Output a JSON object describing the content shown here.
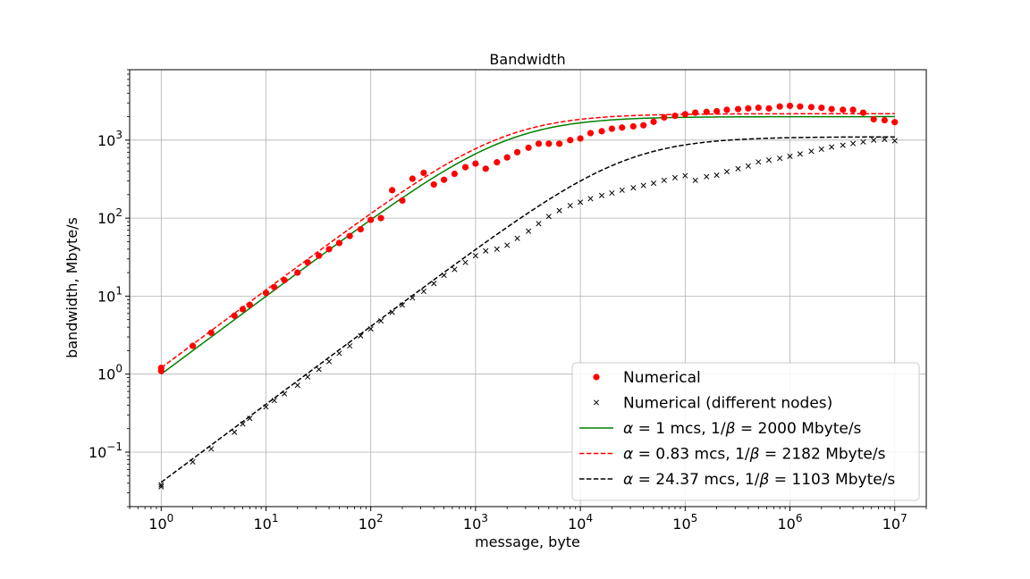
{
  "chart_data": {
    "type": "scatter",
    "title": "Bandwidth",
    "xlabel": "message, byte",
    "ylabel": "bandwidth, Mbyte/s",
    "xscale": "log",
    "yscale": "log",
    "xlim": [
      0.5,
      20000000
    ],
    "ylim": [
      0.02,
      8000
    ],
    "grid": true,
    "legend_position": "lower-right",
    "x_ticks": [
      {
        "base": "10",
        "exp": "0",
        "value": 1
      },
      {
        "base": "10",
        "exp": "1",
        "value": 10
      },
      {
        "base": "10",
        "exp": "2",
        "value": 100
      },
      {
        "base": "10",
        "exp": "3",
        "value": 1000
      },
      {
        "base": "10",
        "exp": "4",
        "value": 10000
      },
      {
        "base": "10",
        "exp": "5",
        "value": 100000
      },
      {
        "base": "10",
        "exp": "6",
        "value": 1000000
      },
      {
        "base": "10",
        "exp": "7",
        "value": 10000000
      }
    ],
    "y_ticks": [
      {
        "base": "10",
        "exp": "−1",
        "value": 0.1
      },
      {
        "base": "10",
        "exp": "0",
        "value": 1
      },
      {
        "base": "10",
        "exp": "1",
        "value": 10
      },
      {
        "base": "10",
        "exp": "2",
        "value": 100
      },
      {
        "base": "10",
        "exp": "3",
        "value": 1000
      }
    ],
    "series": [
      {
        "name": "Numerical",
        "kind": "scatter",
        "marker": "circle",
        "color": "#ff0000",
        "x": [
          1,
          1,
          2,
          3,
          5,
          6,
          7,
          10,
          12,
          15,
          20,
          25,
          32,
          40,
          50,
          63,
          80,
          100,
          125,
          160,
          200,
          250,
          320,
          400,
          500,
          630,
          800,
          1000,
          1250,
          1600,
          2000,
          2500,
          3200,
          4000,
          5000,
          6300,
          8000,
          10000,
          12500,
          16000,
          20000,
          25000,
          32000,
          40000,
          50000,
          63000,
          80000,
          100000,
          125000,
          160000,
          200000,
          250000,
          320000,
          400000,
          500000,
          630000,
          800000,
          1000000,
          1250000,
          1600000,
          2000000,
          2500000,
          3200000,
          4000000,
          5000000,
          6300000,
          8000000,
          10000000
        ],
        "y": [
          1.2,
          1.1,
          2.3,
          3.4,
          5.6,
          6.8,
          7.7,
          11,
          13,
          16,
          20,
          27,
          33,
          40,
          48,
          59,
          72,
          95,
          100,
          228,
          168,
          320,
          380,
          270,
          310,
          370,
          450,
          500,
          430,
          520,
          600,
          700,
          800,
          900,
          900,
          900,
          1000,
          1050,
          1230,
          1300,
          1400,
          1450,
          1500,
          1550,
          1720,
          1950,
          2050,
          2150,
          2250,
          2300,
          2350,
          2450,
          2500,
          2550,
          2600,
          2550,
          2700,
          2750,
          2700,
          2650,
          2600,
          2500,
          2450,
          2450,
          2250,
          1850,
          1800,
          1700
        ]
      },
      {
        "name": "Numerical (different nodes)",
        "kind": "scatter",
        "marker": "x",
        "color": "#000000",
        "x": [
          1,
          1,
          2,
          3,
          5,
          6,
          7,
          10,
          12,
          15,
          20,
          25,
          32,
          40,
          50,
          63,
          80,
          100,
          125,
          160,
          200,
          250,
          320,
          400,
          500,
          630,
          800,
          1000,
          1250,
          1600,
          2000,
          2500,
          3200,
          4000,
          5000,
          6300,
          8000,
          10000,
          12500,
          16000,
          20000,
          25000,
          32000,
          40000,
          50000,
          63000,
          80000,
          100000,
          125000,
          160000,
          200000,
          250000,
          320000,
          400000,
          500000,
          630000,
          800000,
          1000000,
          1250000,
          1600000,
          2000000,
          2500000,
          3200000,
          4000000,
          5000000,
          6300000,
          8000000,
          10000000
        ],
        "y": [
          0.038,
          0.036,
          0.075,
          0.11,
          0.18,
          0.23,
          0.27,
          0.38,
          0.46,
          0.56,
          0.72,
          0.92,
          1.15,
          1.45,
          1.85,
          2.3,
          3.1,
          3.8,
          4.8,
          6.2,
          7.7,
          9.5,
          11.5,
          14.5,
          18.5,
          22,
          27,
          33,
          38,
          40,
          45,
          55,
          68,
          85,
          105,
          125,
          145,
          160,
          178,
          195,
          210,
          228,
          245,
          262,
          280,
          305,
          330,
          350,
          305,
          340,
          355,
          395,
          430,
          465,
          525,
          555,
          585,
          620,
          665,
          720,
          765,
          815,
          860,
          905,
          950,
          1000,
          1020,
          980
        ]
      },
      {
        "name": "α = 1 mcs, 1/β = 2000 Mbyte/s",
        "kind": "line",
        "style": "solid",
        "color": "#008000",
        "alpha_mcs": 1,
        "inv_beta_mbyte_s": 2000
      },
      {
        "name": "α = 0.83 mcs, 1/β = 2182 Mbyte/s",
        "kind": "line",
        "style": "dashed",
        "color": "#ff0000",
        "alpha_mcs": 0.83,
        "inv_beta_mbyte_s": 2182
      },
      {
        "name": "α = 24.37 mcs, 1/β = 1103 Mbyte/s",
        "kind": "line",
        "style": "dashed",
        "color": "#000000",
        "alpha_mcs": 24.37,
        "inv_beta_mbyte_s": 1103
      }
    ],
    "legend": [
      {
        "label": "Numerical",
        "marker": "circle",
        "color": "#ff0000"
      },
      {
        "label": "Numerical (different nodes)",
        "marker": "x",
        "color": "#000000"
      },
      {
        "prefix": "α",
        "middle": " = 1 mcs, 1/",
        "beta": "β",
        "suffix": " = 2000 Mbyte/s",
        "marker": "solid",
        "color": "#008000"
      },
      {
        "prefix": "α",
        "middle": " = 0.83 mcs, 1/",
        "beta": "β",
        "suffix": " = 2182 Mbyte/s",
        "marker": "dashed",
        "color": "#ff0000"
      },
      {
        "prefix": "α",
        "middle": " = 24.37 mcs, 1/",
        "beta": "β",
        "suffix": " = 1103 Mbyte/s",
        "marker": "dashed",
        "color": "#000000"
      }
    ]
  }
}
